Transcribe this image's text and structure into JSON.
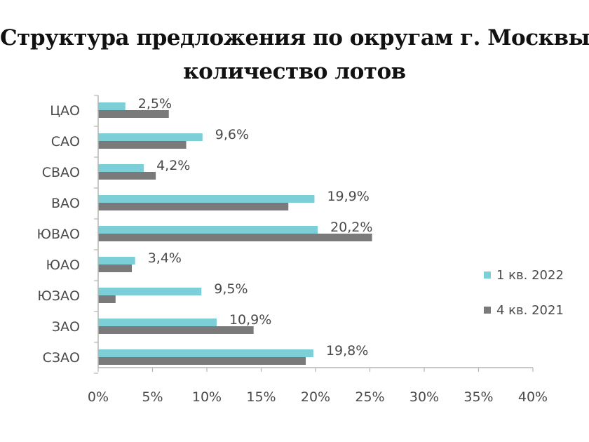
{
  "title_line1": "Структура предложения по округам г. Москвы,",
  "title_line2": "количество лотов",
  "chart_data": {
    "type": "bar",
    "orientation": "horizontal",
    "categories": [
      "ЦАО",
      "САО",
      "СВАО",
      "ВАО",
      "ЮВАО",
      "ЮАО",
      "ЮЗАО",
      "ЗАО",
      "СЗАО"
    ],
    "series": [
      {
        "name": "1 кв. 2022",
        "color": "#7ccfd6",
        "values": [
          2.5,
          9.6,
          4.2,
          19.9,
          20.2,
          3.4,
          9.5,
          10.9,
          19.8
        ],
        "labels": [
          "2,5%",
          "9,6%",
          "4,2%",
          "19,9%",
          "20,2%",
          "3,4%",
          "9,5%",
          "10,9%",
          "19,8%"
        ]
      },
      {
        "name": "4 кв. 2021",
        "color": "#7a7a7a",
        "values": [
          6.5,
          8.1,
          5.3,
          17.5,
          25.2,
          3.1,
          1.6,
          14.3,
          19.1
        ]
      }
    ],
    "xlim": [
      0,
      40
    ],
    "xticks": [
      "0%",
      "5%",
      "10%",
      "15%",
      "20%",
      "25%",
      "30%",
      "35%",
      "40%"
    ],
    "grid": false,
    "legend_position": "right"
  }
}
